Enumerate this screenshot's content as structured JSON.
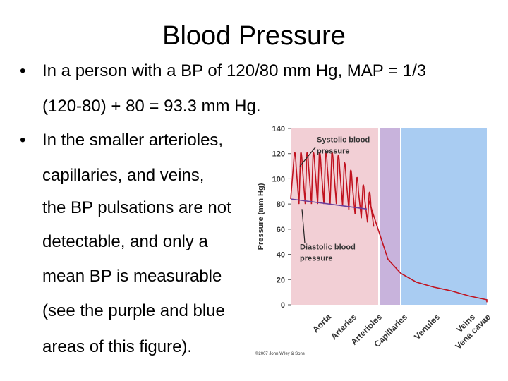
{
  "slide": {
    "title": "Blood Pressure",
    "bullet_char": "•",
    "bullet1_lines": [
      "In a person with a BP of 120/80 mm Hg, MAP = 1/3",
      "(120-80) + 80 = 93.3 mm Hg."
    ],
    "bullet2_lines": [
      "In the smaller arterioles,",
      "capillaries, and veins,",
      "the BP pulsations are not",
      "detectable, and only a",
      "mean BP is measurable",
      "(see the purple and blue",
      "areas of this figure)."
    ]
  },
  "chart_data": {
    "type": "line",
    "ylabel": "Pressure (mm Hg)",
    "ylim": [
      0,
      140
    ],
    "yticks": [
      0,
      20,
      40,
      60,
      80,
      100,
      120,
      140
    ],
    "categories": [
      "Aorta",
      "Arteries",
      "Arterioles",
      "Capillaries",
      "Venules",
      "Veins",
      "Vena cavae"
    ],
    "regions": [
      {
        "label": "Aorta-Arteries-Arterioles",
        "color": "#f2cfd5"
      },
      {
        "label": "Capillaries",
        "color": "#c8b3dc"
      },
      {
        "label": "Venules-Veins-Vena cavae",
        "color": "#a9ccf2"
      }
    ],
    "annotations": [
      {
        "text": "Systolic blood pressure",
        "value": 120
      },
      {
        "text": "Diastolic blood pressure",
        "value": 80
      }
    ],
    "mean_pressure_start": 84,
    "pressure_trace": [
      [
        0,
        84
      ],
      [
        0.6,
        58
      ],
      [
        1.6,
        36
      ],
      [
        2.3,
        25
      ],
      [
        3.0,
        18
      ],
      [
        3.8,
        14
      ],
      [
        4.6,
        11
      ],
      [
        5.3,
        7
      ],
      [
        6.0,
        4
      ],
      [
        6.8,
        2
      ]
    ],
    "colors": {
      "trace": "#c1121f",
      "mean": "#6a3f9b",
      "grid": "#ffffff"
    },
    "copyright": "©2007 John Wiley & Sons"
  }
}
